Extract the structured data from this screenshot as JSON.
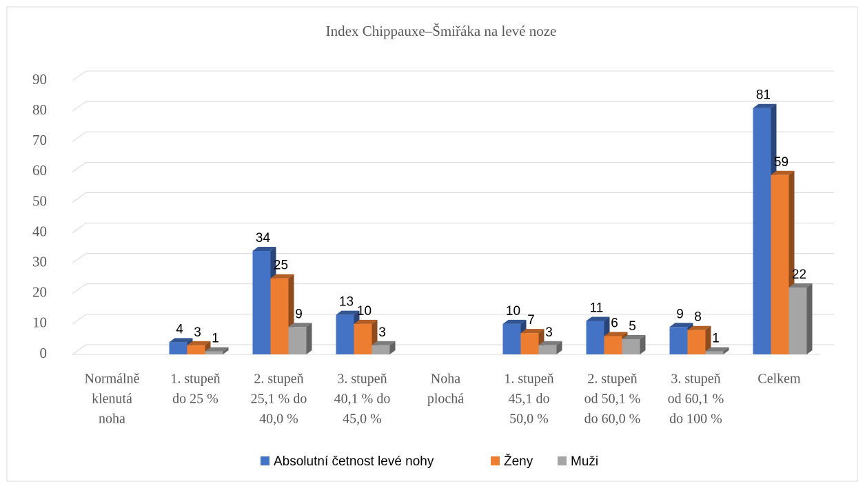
{
  "chart_data": {
    "type": "bar3d",
    "title": "Index Chippauxe–Šmiřáka na levé noze",
    "categories": [
      [
        "Normálně",
        "klenutá",
        "noha"
      ],
      [
        "1. stupeň",
        "do 25 %"
      ],
      [
        "2. stupeň",
        "25,1 % do",
        "40,0 %"
      ],
      [
        "3. stupeň",
        "40,1 % do",
        "45,0 %"
      ],
      [
        "Noha",
        "plochá"
      ],
      [
        "1. stupeň",
        "45,1 do",
        "50,0 %"
      ],
      [
        "2. stupeň",
        "od 50,1 %",
        "do 60,0 %"
      ],
      [
        "3. stupeň",
        "od 60,1 %",
        "do 100 %"
      ],
      [
        "Celkem"
      ]
    ],
    "series": [
      {
        "name": "Absolutní četnost levé nohy",
        "color": "#4472c4",
        "values": [
          null,
          4,
          34,
          13,
          null,
          10,
          11,
          9,
          81
        ]
      },
      {
        "name": "Ženy",
        "color": "#ed7d31",
        "values": [
          null,
          3,
          25,
          10,
          null,
          7,
          6,
          8,
          59
        ]
      },
      {
        "name": "Muži",
        "color": "#a5a5a5",
        "values": [
          null,
          1,
          9,
          3,
          null,
          3,
          5,
          1,
          22
        ]
      }
    ],
    "ylim": [
      0,
      90
    ],
    "yticks": [
      0,
      10,
      20,
      30,
      40,
      50,
      60,
      70,
      80,
      90
    ],
    "grid": true,
    "legend": "bottom"
  }
}
